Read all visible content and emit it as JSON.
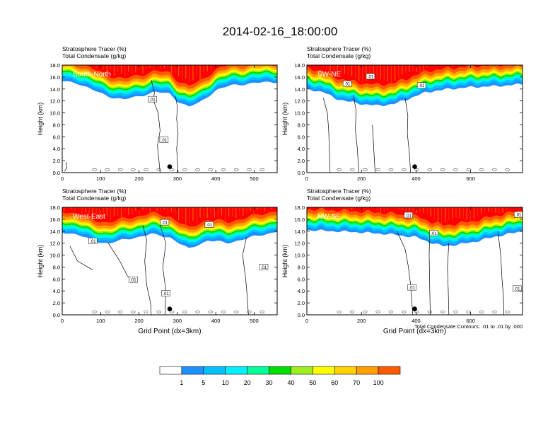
{
  "title": "2014-02-16_18:00:00",
  "footnote": "Total Condensate Contours: .01 to .01 by .000",
  "colors": {
    "levels": [
      "#ffffff",
      "#1e90ff",
      "#00c0ff",
      "#00f0ff",
      "#00ff9a",
      "#00e000",
      "#a0ee20",
      "#ffff00",
      "#ffd200",
      "#ffa000",
      "#ff5a00",
      "#ff0000"
    ],
    "contour": "#000000",
    "panel_label": "#ffffff"
  },
  "chart_data": [
    {
      "type": "heatmap",
      "name": "South-North",
      "title_line1": "Stratosphere Tracer   (%)",
      "title_line2": "Total Condensate   (g/kg)",
      "xlabel": "",
      "ylabel": "Height (km)",
      "xlim": [
        0,
        560
      ],
      "ylim": [
        0,
        18
      ],
      "xticks": [
        0,
        100,
        200,
        300,
        400,
        500
      ],
      "yticks": [
        "0.0",
        "2.0",
        "4.0",
        "6.0",
        "8.0",
        "10.0",
        "12.0",
        "14.0",
        "16.0",
        "18.0"
      ],
      "contour_labels": [
        ".01",
        ".01"
      ],
      "base": [
        [
          0,
          15.3
        ],
        [
          40,
          15.0
        ],
        [
          80,
          13.8
        ],
        [
          120,
          12.8
        ],
        [
          160,
          12.2
        ],
        [
          200,
          12.8
        ],
        [
          240,
          13.5
        ],
        [
          280,
          13.2
        ],
        [
          300,
          12.0
        ],
        [
          330,
          11.0
        ],
        [
          360,
          11.8
        ],
        [
          400,
          13.8
        ],
        [
          440,
          14.6
        ],
        [
          500,
          15.0
        ],
        [
          560,
          15.2
        ]
      ],
      "marker_x": 280
    },
    {
      "type": "heatmap",
      "name": "SW-NE",
      "title_line1": "Stratosphere Tracer   (%)",
      "title_line2": "Total Condensate   (g/kg)",
      "xlabel": "",
      "ylabel": "Height (km)",
      "xlim": [
        0,
        790
      ],
      "ylim": [
        0,
        18
      ],
      "xticks": [
        0,
        200,
        400,
        600
      ],
      "yticks": [
        "0.0",
        "2.0",
        "4.0",
        "6.0",
        "8.0",
        "10.0",
        "12.0",
        "14.0",
        "16.0",
        "18.0"
      ],
      "contour_labels": [
        ".01",
        ".01",
        ".01"
      ],
      "base": [
        [
          0,
          14.0
        ],
        [
          60,
          13.5
        ],
        [
          100,
          12.5
        ],
        [
          140,
          12.0
        ],
        [
          200,
          11.5
        ],
        [
          260,
          11.2
        ],
        [
          320,
          11.5
        ],
        [
          380,
          12.5
        ],
        [
          440,
          13.5
        ],
        [
          520,
          14.0
        ],
        [
          600,
          14.3
        ],
        [
          700,
          14.5
        ],
        [
          790,
          14.8
        ]
      ],
      "marker_x": 395
    },
    {
      "type": "heatmap",
      "name": "West-East",
      "title_line1": "Stratosphere Tracer   (%)",
      "title_line2": "Total Condensate   (g/kg)",
      "xlabel": "Grid Point (dx=3km)",
      "ylabel": "Height (km)",
      "xlim": [
        0,
        560
      ],
      "ylim": [
        0,
        18
      ],
      "xticks": [
        0,
        100,
        200,
        300,
        400,
        500
      ],
      "yticks": [
        "0.0",
        "2.0",
        "4.0",
        "6.0",
        "8.0",
        "10.0",
        "12.0",
        "14.0",
        "16.0",
        "18.0"
      ],
      "contour_labels": [
        ".01",
        ".01",
        ".01",
        ".01",
        ".01",
        ".01"
      ],
      "base": [
        [
          0,
          13.8
        ],
        [
          40,
          13.5
        ],
        [
          80,
          12.3
        ],
        [
          120,
          12.0
        ],
        [
          180,
          12.8
        ],
        [
          230,
          13.5
        ],
        [
          280,
          13.0
        ],
        [
          330,
          11.0
        ],
        [
          380,
          12.5
        ],
        [
          430,
          12.0
        ],
        [
          480,
          12.8
        ],
        [
          530,
          13.5
        ],
        [
          560,
          14.0
        ]
      ],
      "marker_x": 280
    },
    {
      "type": "heatmap",
      "name": "NW-SE",
      "title_line1": "Stratosphere Tracer   (%)",
      "title_line2": "Total Condensate   (g/kg)",
      "xlabel": "Grid Point (dx=3km)",
      "ylabel": "Height (km)",
      "xlim": [
        0,
        790
      ],
      "ylim": [
        0,
        18
      ],
      "xticks": [
        0,
        200,
        400,
        600
      ],
      "yticks": [
        "0.0",
        "2.0",
        "4.0",
        "6.0",
        "8.0",
        "10.0",
        "12.0",
        "14.0",
        "16.0",
        "18.0"
      ],
      "contour_labels": [
        ".01",
        ".01",
        ".01",
        ".01",
        ".01"
      ],
      "base": [
        [
          0,
          14.2
        ],
        [
          100,
          14.0
        ],
        [
          200,
          13.8
        ],
        [
          300,
          13.5
        ],
        [
          400,
          13.0
        ],
        [
          460,
          12.0
        ],
        [
          500,
          11.5
        ],
        [
          560,
          11.8
        ],
        [
          620,
          12.3
        ],
        [
          700,
          13.2
        ],
        [
          790,
          14.0
        ]
      ],
      "marker_x": 395
    }
  ],
  "colorbar": {
    "labels": [
      "1",
      "5",
      "10",
      "20",
      "30",
      "40",
      "50",
      "60",
      "70",
      "100"
    ]
  }
}
